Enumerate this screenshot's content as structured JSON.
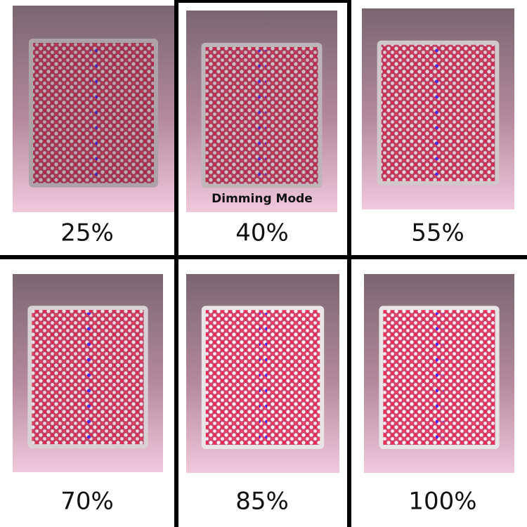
{
  "caption": "Dimming Mode",
  "panels": [
    {
      "label": "25%"
    },
    {
      "label": "40%"
    },
    {
      "label": "55%"
    },
    {
      "label": "70%"
    },
    {
      "label": "85%"
    },
    {
      "label": "100%"
    }
  ]
}
